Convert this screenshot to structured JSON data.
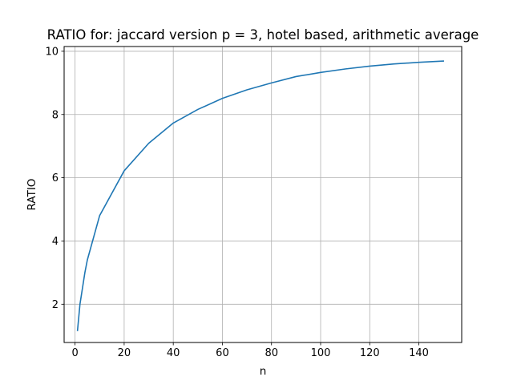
{
  "chart_data": {
    "type": "line",
    "title": "RATIO for: jaccard version p = 3, hotel based, arithmetic average",
    "xlabel": "n",
    "ylabel": "RATIO",
    "xlim": [
      -4.45,
      157.45
    ],
    "ylim": [
      0.79,
      10.15
    ],
    "xticks": [
      0,
      20,
      40,
      60,
      80,
      100,
      120,
      140
    ],
    "yticks": [
      2,
      4,
      6,
      8,
      10
    ],
    "grid": true,
    "series": [
      {
        "color": "#1f77b4",
        "x": [
          1,
          2,
          3,
          4,
          5,
          10,
          20,
          30,
          40,
          50,
          60,
          70,
          80,
          90,
          100,
          110,
          120,
          130,
          140,
          150
        ],
        "y": [
          1.17,
          2.0,
          2.5,
          3.0,
          3.4,
          4.8,
          6.22,
          7.09,
          7.73,
          8.16,
          8.51,
          8.78,
          9.0,
          9.2,
          9.33,
          9.44,
          9.53,
          9.6,
          9.65,
          9.69
        ]
      }
    ]
  }
}
